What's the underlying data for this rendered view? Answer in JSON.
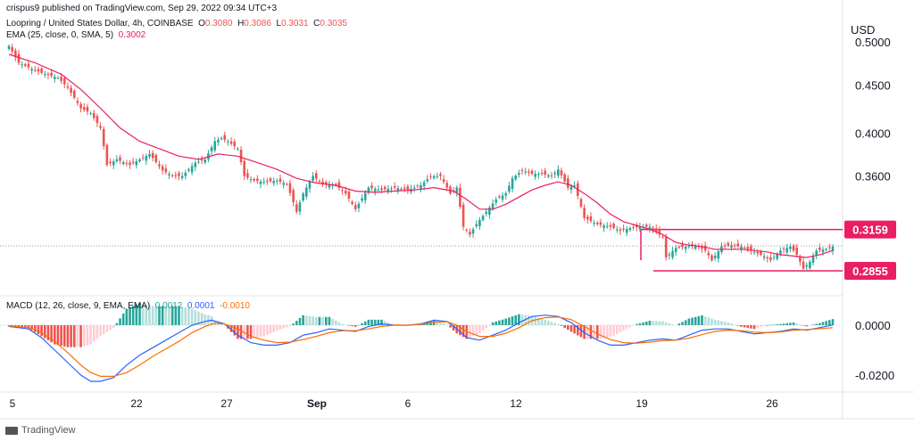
{
  "header": {
    "published": "crispus9 published on TradingView.com, Sep 29, 2022 09:34 UTC+3",
    "symbol": "Loopring / United States Dollar, 4h, COINBASE",
    "o_label": "O",
    "o_value": "0.3080",
    "h_label": "H",
    "h_value": "0.3086",
    "l_label": "L",
    "l_value": "0.3031",
    "c_label": "C",
    "c_value": "0.3035",
    "ema_label": "EMA (25, close, 0, SMA, 5)",
    "ema_value": "0.3002",
    "macd_label": "MACD (12, 26, close, 9, EMA, EMA)",
    "macd_hist": "0.0012",
    "macd_line": "0.0001",
    "macd_signal": "-0.0010"
  },
  "footer": {
    "brand": "TradingView"
  },
  "colors": {
    "up": "#26a69a",
    "down": "#ef5350",
    "ema": "#e91e63",
    "level": "#e91e63",
    "macd": "#2962ff",
    "signal": "#ff6d00"
  },
  "chart_data": {
    "type": "candlestick",
    "currency": "USD",
    "price_ticks": [
      "0.5000",
      "0.4500",
      "0.4000",
      "0.3600",
      "0.0000",
      "-0.0200"
    ],
    "price_ticks_main": [
      0.5,
      0.45,
      0.4,
      0.36
    ],
    "price_scale_type": "log",
    "macd_ticks": [
      0.0,
      -0.02
    ],
    "x_ticks": [
      "5",
      "22",
      "27",
      "Sep",
      "6",
      "12",
      "19",
      "26"
    ],
    "levels": [
      {
        "label": "0.3159",
        "value": 0.3159
      },
      {
        "label": "0.2855",
        "value": 0.2855
      }
    ],
    "close_path": [
      [
        0,
        0.495
      ],
      [
        3,
        0.475
      ],
      [
        7,
        0.468
      ],
      [
        11,
        0.462
      ],
      [
        15,
        0.458
      ],
      [
        18,
        0.447
      ],
      [
        22,
        0.425
      ],
      [
        25,
        0.42
      ],
      [
        28,
        0.405
      ],
      [
        30,
        0.37
      ],
      [
        33,
        0.375
      ],
      [
        37,
        0.37
      ],
      [
        40,
        0.375
      ],
      [
        43,
        0.38
      ],
      [
        47,
        0.365
      ],
      [
        50,
        0.36
      ],
      [
        53,
        0.36
      ],
      [
        57,
        0.372
      ],
      [
        60,
        0.375
      ],
      [
        63,
        0.392
      ],
      [
        65,
        0.395
      ],
      [
        67,
        0.392
      ],
      [
        70,
        0.385
      ],
      [
        72,
        0.36
      ],
      [
        75,
        0.356
      ],
      [
        78,
        0.355
      ],
      [
        82,
        0.356
      ],
      [
        85,
        0.353
      ],
      [
        88,
        0.33
      ],
      [
        90,
        0.345
      ],
      [
        93,
        0.36
      ],
      [
        96,
        0.353
      ],
      [
        100,
        0.352
      ],
      [
        103,
        0.345
      ],
      [
        106,
        0.332
      ],
      [
        110,
        0.35
      ],
      [
        114,
        0.348
      ],
      [
        118,
        0.35
      ],
      [
        122,
        0.348
      ],
      [
        126,
        0.352
      ],
      [
        129,
        0.36
      ],
      [
        132,
        0.36
      ],
      [
        135,
        0.345
      ],
      [
        137,
        0.35
      ],
      [
        139,
        0.318
      ],
      [
        141,
        0.312
      ],
      [
        143,
        0.32
      ],
      [
        146,
        0.33
      ],
      [
        149,
        0.34
      ],
      [
        152,
        0.345
      ],
      [
        154,
        0.358
      ],
      [
        157,
        0.365
      ],
      [
        160,
        0.362
      ],
      [
        163,
        0.362
      ],
      [
        166,
        0.36
      ],
      [
        168,
        0.366
      ],
      [
        171,
        0.35
      ],
      [
        173,
        0.352
      ],
      [
        176,
        0.325
      ],
      [
        180,
        0.32
      ],
      [
        184,
        0.318
      ],
      [
        187,
        0.315
      ],
      [
        190,
        0.317
      ],
      [
        193,
        0.318
      ],
      [
        196,
        0.318
      ],
      [
        200,
        0.31
      ],
      [
        201,
        0.295
      ],
      [
        204,
        0.302
      ],
      [
        207,
        0.303
      ],
      [
        210,
        0.304
      ],
      [
        213,
        0.3
      ],
      [
        215,
        0.293
      ],
      [
        218,
        0.303
      ],
      [
        221,
        0.304
      ],
      [
        224,
        0.303
      ],
      [
        227,
        0.3
      ],
      [
        230,
        0.297
      ],
      [
        233,
        0.293
      ],
      [
        236,
        0.3
      ],
      [
        239,
        0.303
      ],
      [
        241,
        0.297
      ],
      [
        243,
        0.287
      ],
      [
        245,
        0.292
      ],
      [
        247,
        0.3
      ],
      [
        250,
        0.301
      ],
      [
        252,
        0.303
      ]
    ],
    "ema_path": [
      [
        0,
        0.485
      ],
      [
        8,
        0.475
      ],
      [
        16,
        0.462
      ],
      [
        22,
        0.445
      ],
      [
        28,
        0.425
      ],
      [
        34,
        0.405
      ],
      [
        40,
        0.392
      ],
      [
        46,
        0.385
      ],
      [
        52,
        0.378
      ],
      [
        58,
        0.375
      ],
      [
        64,
        0.38
      ],
      [
        70,
        0.378
      ],
      [
        76,
        0.372
      ],
      [
        82,
        0.366
      ],
      [
        88,
        0.358
      ],
      [
        94,
        0.354
      ],
      [
        100,
        0.352
      ],
      [
        106,
        0.347
      ],
      [
        112,
        0.346
      ],
      [
        118,
        0.347
      ],
      [
        124,
        0.348
      ],
      [
        130,
        0.35
      ],
      [
        136,
        0.347
      ],
      [
        140,
        0.34
      ],
      [
        144,
        0.332
      ],
      [
        148,
        0.332
      ],
      [
        152,
        0.336
      ],
      [
        156,
        0.342
      ],
      [
        160,
        0.348
      ],
      [
        164,
        0.352
      ],
      [
        168,
        0.355
      ],
      [
        172,
        0.352
      ],
      [
        176,
        0.345
      ],
      [
        180,
        0.337
      ],
      [
        184,
        0.328
      ],
      [
        188,
        0.322
      ],
      [
        192,
        0.319
      ],
      [
        196,
        0.316
      ],
      [
        200,
        0.312
      ],
      [
        204,
        0.306
      ],
      [
        208,
        0.304
      ],
      [
        212,
        0.303
      ],
      [
        216,
        0.301
      ],
      [
        220,
        0.301
      ],
      [
        224,
        0.301
      ],
      [
        228,
        0.3
      ],
      [
        232,
        0.299
      ],
      [
        236,
        0.297
      ],
      [
        240,
        0.296
      ],
      [
        244,
        0.295
      ],
      [
        248,
        0.297
      ],
      [
        252,
        0.3
      ]
    ],
    "macd_line_path": [
      [
        0,
        -0.0005
      ],
      [
        6,
        -0.0015
      ],
      [
        10,
        -0.005
      ],
      [
        14,
        -0.01
      ],
      [
        18,
        -0.015
      ],
      [
        22,
        -0.02
      ],
      [
        25,
        -0.0225
      ],
      [
        28,
        -0.0225
      ],
      [
        32,
        -0.021
      ],
      [
        36,
        -0.016
      ],
      [
        40,
        -0.012
      ],
      [
        44,
        -0.009
      ],
      [
        48,
        -0.006
      ],
      [
        52,
        -0.003
      ],
      [
        56,
        0.0
      ],
      [
        60,
        0.0015
      ],
      [
        62,
        0.002
      ],
      [
        66,
        0.0005
      ],
      [
        70,
        -0.004
      ],
      [
        74,
        -0.007
      ],
      [
        78,
        -0.008
      ],
      [
        82,
        -0.008
      ],
      [
        86,
        -0.007
      ],
      [
        90,
        -0.004
      ],
      [
        94,
        -0.003
      ],
      [
        98,
        -0.0015
      ],
      [
        102,
        -0.002
      ],
      [
        106,
        -0.0025
      ],
      [
        110,
        -0.0005
      ],
      [
        114,
        0.0005
      ],
      [
        118,
        0.0
      ],
      [
        122,
        0.0
      ],
      [
        126,
        0.0005
      ],
      [
        130,
        0.002
      ],
      [
        134,
        0.0015
      ],
      [
        137,
        -0.0015
      ],
      [
        140,
        -0.005
      ],
      [
        144,
        -0.006
      ],
      [
        148,
        -0.004
      ],
      [
        152,
        -0.002
      ],
      [
        156,
        0.001
      ],
      [
        160,
        0.0035
      ],
      [
        164,
        0.004
      ],
      [
        168,
        0.0035
      ],
      [
        172,
        0.001
      ],
      [
        176,
        -0.003
      ],
      [
        180,
        -0.006
      ],
      [
        184,
        -0.008
      ],
      [
        188,
        -0.008
      ],
      [
        192,
        -0.007
      ],
      [
        196,
        -0.006
      ],
      [
        200,
        -0.0055
      ],
      [
        204,
        -0.006
      ],
      [
        208,
        -0.004
      ],
      [
        212,
        -0.002
      ],
      [
        216,
        -0.0015
      ],
      [
        220,
        -0.0015
      ],
      [
        224,
        -0.0025
      ],
      [
        228,
        -0.0035
      ],
      [
        232,
        -0.003
      ],
      [
        236,
        -0.0025
      ],
      [
        240,
        -0.0015
      ],
      [
        244,
        -0.002
      ],
      [
        248,
        -0.001
      ],
      [
        252,
        0.0001
      ]
    ],
    "signal_line_path": [
      [
        0,
        -0.0003
      ],
      [
        6,
        -0.001
      ],
      [
        10,
        -0.003
      ],
      [
        14,
        -0.0065
      ],
      [
        18,
        -0.011
      ],
      [
        22,
        -0.016
      ],
      [
        25,
        -0.019
      ],
      [
        28,
        -0.0205
      ],
      [
        32,
        -0.0205
      ],
      [
        36,
        -0.019
      ],
      [
        40,
        -0.016
      ],
      [
        44,
        -0.0125
      ],
      [
        48,
        -0.0095
      ],
      [
        52,
        -0.0065
      ],
      [
        56,
        -0.003
      ],
      [
        60,
        -0.0005
      ],
      [
        63,
        0.0008
      ],
      [
        66,
        0.0005
      ],
      [
        70,
        -0.0015
      ],
      [
        74,
        -0.0045
      ],
      [
        78,
        -0.006
      ],
      [
        82,
        -0.007
      ],
      [
        86,
        -0.0068
      ],
      [
        90,
        -0.0058
      ],
      [
        94,
        -0.0045
      ],
      [
        98,
        -0.003
      ],
      [
        102,
        -0.0022
      ],
      [
        106,
        -0.0022
      ],
      [
        110,
        -0.0015
      ],
      [
        114,
        -0.0005
      ],
      [
        118,
        0.0
      ],
      [
        122,
        0.0
      ],
      [
        126,
        0.0003
      ],
      [
        130,
        0.0012
      ],
      [
        134,
        0.0014
      ],
      [
        137,
        0.0
      ],
      [
        140,
        -0.0025
      ],
      [
        144,
        -0.0045
      ],
      [
        148,
        -0.0045
      ],
      [
        152,
        -0.0032
      ],
      [
        156,
        -0.001
      ],
      [
        160,
        0.0018
      ],
      [
        164,
        0.003
      ],
      [
        168,
        0.0033
      ],
      [
        172,
        0.0022
      ],
      [
        176,
        -0.0005
      ],
      [
        180,
        -0.0035
      ],
      [
        184,
        -0.0058
      ],
      [
        188,
        -0.007
      ],
      [
        192,
        -0.0072
      ],
      [
        196,
        -0.0068
      ],
      [
        200,
        -0.0062
      ],
      [
        204,
        -0.006
      ],
      [
        208,
        -0.0052
      ],
      [
        212,
        -0.0038
      ],
      [
        216,
        -0.0025
      ],
      [
        220,
        -0.002
      ],
      [
        224,
        -0.0022
      ],
      [
        228,
        -0.0028
      ],
      [
        232,
        -0.003
      ],
      [
        236,
        -0.0027
      ],
      [
        240,
        -0.002
      ],
      [
        244,
        -0.0018
      ],
      [
        248,
        -0.0014
      ],
      [
        252,
        -0.001
      ]
    ]
  }
}
